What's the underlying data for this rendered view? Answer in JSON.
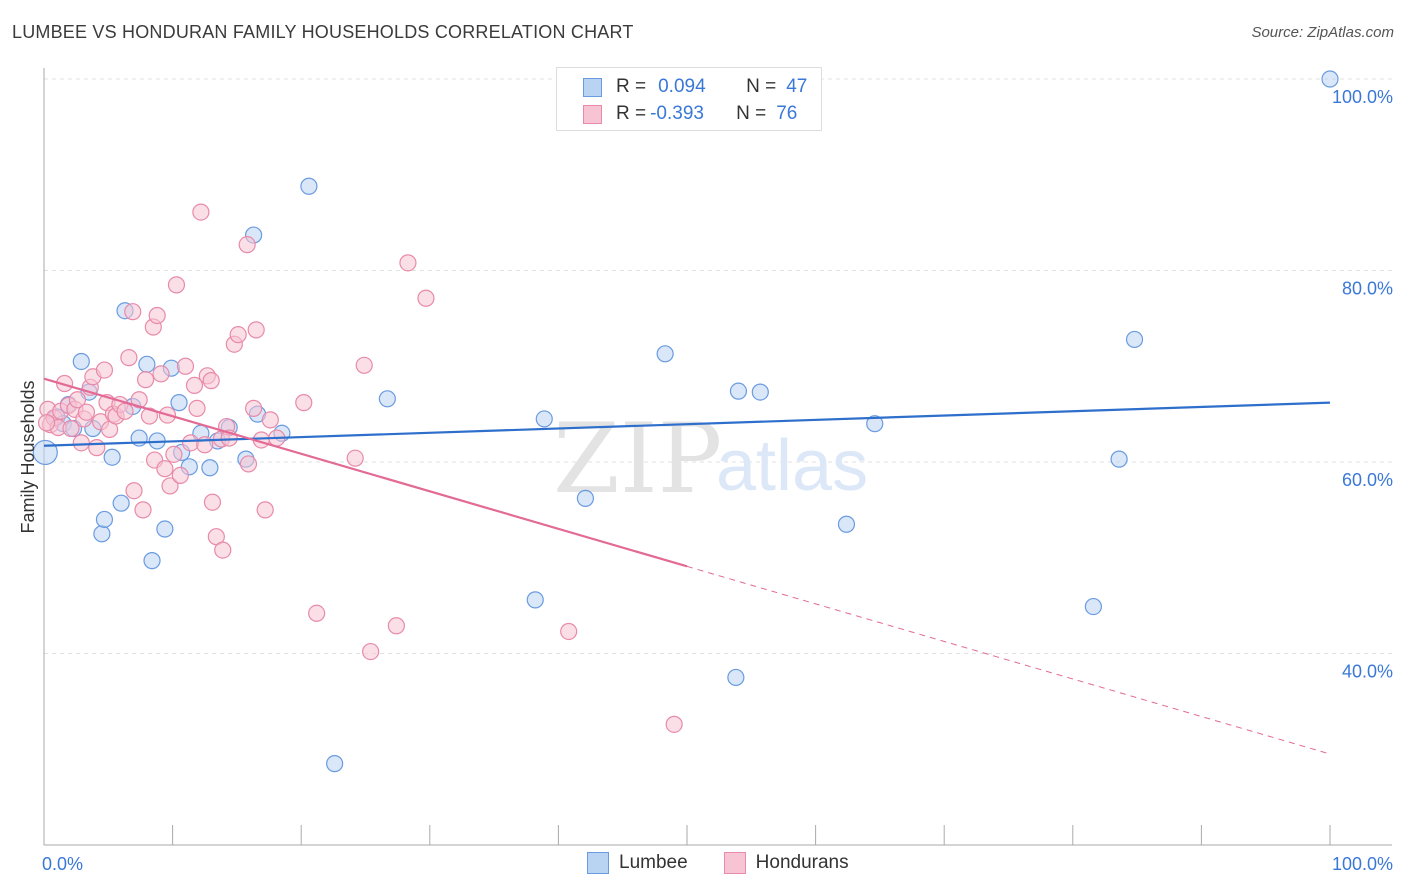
{
  "title": "LUMBEE VS HONDURAN FAMILY HOUSEHOLDS CORRELATION CHART",
  "source": "Source: ZipAtlas.com",
  "watermark": {
    "part1": "ZIP",
    "part2": "atlas"
  },
  "legend": {
    "rows": [
      {
        "r_label": "R =",
        "r_value": "0.094",
        "n_label": "N =",
        "n_value": "47"
      },
      {
        "r_label": "R =",
        "r_value": "-0.393",
        "n_label": "N =",
        "n_value": "76"
      }
    ]
  },
  "colors": {
    "lumbee_fill": "#b9d3f3",
    "lumbee_stroke": "#6a9be0",
    "lumbee_line": "#2e6fcc",
    "honduran_fill": "#f7c4d4",
    "honduran_stroke": "#e88aa9",
    "honduran_line": "#e36a95",
    "grid": "#e2e2e2",
    "tick_text": "#3a78d8"
  },
  "chart_data": {
    "type": "scatter",
    "title": "LUMBEE VS HONDURAN FAMILY HOUSEHOLDS CORRELATION CHART",
    "xlabel": "",
    "ylabel": "Family Households",
    "xlim": [
      0,
      100
    ],
    "ylim": [
      20,
      100
    ],
    "x_tick_labels": [
      {
        "value": 0,
        "label": "0.0%"
      },
      {
        "value": 100,
        "label": "100.0%"
      }
    ],
    "y_tick_labels": [
      {
        "value": 100,
        "label": "100.0%"
      },
      {
        "value": 80,
        "label": "80.0%"
      },
      {
        "value": 60,
        "label": "60.0%"
      },
      {
        "value": 40,
        "label": "40.0%"
      }
    ],
    "series": [
      {
        "name": "Lumbee",
        "trend": {
          "x0": 0,
          "y0": 61.7,
          "x1": 100,
          "y1": 66.2,
          "dashed_from": null
        },
        "points": [
          {
            "x": 0.1,
            "y": 61.0
          },
          {
            "x": 1.0,
            "y": 64.7
          },
          {
            "x": 1.5,
            "y": 64.0
          },
          {
            "x": 1.9,
            "y": 66.0
          },
          {
            "x": 2.3,
            "y": 63.5
          },
          {
            "x": 2.9,
            "y": 70.5
          },
          {
            "x": 3.5,
            "y": 67.3
          },
          {
            "x": 3.8,
            "y": 63.5
          },
          {
            "x": 4.5,
            "y": 52.5
          },
          {
            "x": 4.7,
            "y": 54.0
          },
          {
            "x": 5.3,
            "y": 60.5
          },
          {
            "x": 6.0,
            "y": 55.7
          },
          {
            "x": 6.3,
            "y": 75.8
          },
          {
            "x": 6.9,
            "y": 65.8
          },
          {
            "x": 7.4,
            "y": 62.5
          },
          {
            "x": 8.0,
            "y": 70.2
          },
          {
            "x": 8.4,
            "y": 49.7
          },
          {
            "x": 8.8,
            "y": 62.2
          },
          {
            "x": 9.4,
            "y": 53.0
          },
          {
            "x": 9.9,
            "y": 69.8
          },
          {
            "x": 10.5,
            "y": 66.2
          },
          {
            "x": 10.7,
            "y": 61.0
          },
          {
            "x": 11.3,
            "y": 59.5
          },
          {
            "x": 12.2,
            "y": 63.0
          },
          {
            "x": 12.9,
            "y": 59.4
          },
          {
            "x": 13.5,
            "y": 62.2
          },
          {
            "x": 14.4,
            "y": 63.6
          },
          {
            "x": 15.7,
            "y": 60.3
          },
          {
            "x": 16.3,
            "y": 83.7
          },
          {
            "x": 16.6,
            "y": 65.0
          },
          {
            "x": 18.5,
            "y": 63.0
          },
          {
            "x": 20.6,
            "y": 88.8
          },
          {
            "x": 22.6,
            "y": 28.5
          },
          {
            "x": 26.7,
            "y": 66.6
          },
          {
            "x": 38.2,
            "y": 45.6
          },
          {
            "x": 38.9,
            "y": 64.5
          },
          {
            "x": 42.1,
            "y": 56.2
          },
          {
            "x": 48.3,
            "y": 71.3
          },
          {
            "x": 53.8,
            "y": 37.5
          },
          {
            "x": 54.0,
            "y": 67.4
          },
          {
            "x": 55.7,
            "y": 67.3
          },
          {
            "x": 62.4,
            "y": 53.5
          },
          {
            "x": 64.6,
            "y": 64.0
          },
          {
            "x": 81.6,
            "y": 44.9
          },
          {
            "x": 83.6,
            "y": 60.3
          },
          {
            "x": 84.8,
            "y": 72.8
          },
          {
            "x": 100.0,
            "y": 100.0
          }
        ]
      },
      {
        "name": "Hondurans",
        "trend": {
          "x0": 0,
          "y0": 68.7,
          "x1": 100,
          "y1": 29.5,
          "dashed_from": 50
        },
        "points": [
          {
            "x": 0.3,
            "y": 65.5
          },
          {
            "x": 0.5,
            "y": 63.9
          },
          {
            "x": 0.8,
            "y": 64.6
          },
          {
            "x": 1.1,
            "y": 63.6
          },
          {
            "x": 1.3,
            "y": 65.3
          },
          {
            "x": 1.6,
            "y": 68.2
          },
          {
            "x": 1.9,
            "y": 65.9
          },
          {
            "x": 2.1,
            "y": 63.5
          },
          {
            "x": 2.4,
            "y": 65.5
          },
          {
            "x": 2.6,
            "y": 66.5
          },
          {
            "x": 2.9,
            "y": 62.0
          },
          {
            "x": 3.1,
            "y": 64.5
          },
          {
            "x": 3.3,
            "y": 65.2
          },
          {
            "x": 3.6,
            "y": 67.8
          },
          {
            "x": 3.8,
            "y": 68.9
          },
          {
            "x": 4.1,
            "y": 61.5
          },
          {
            "x": 4.4,
            "y": 64.2
          },
          {
            "x": 4.7,
            "y": 69.6
          },
          {
            "x": 4.9,
            "y": 66.2
          },
          {
            "x": 5.1,
            "y": 63.4
          },
          {
            "x": 5.4,
            "y": 65.0
          },
          {
            "x": 5.6,
            "y": 64.8
          },
          {
            "x": 5.9,
            "y": 66.0
          },
          {
            "x": 6.3,
            "y": 65.3
          },
          {
            "x": 6.6,
            "y": 70.9
          },
          {
            "x": 6.9,
            "y": 75.7
          },
          {
            "x": 7.0,
            "y": 57.0
          },
          {
            "x": 7.4,
            "y": 66.5
          },
          {
            "x": 7.7,
            "y": 55.0
          },
          {
            "x": 7.9,
            "y": 68.6
          },
          {
            "x": 8.2,
            "y": 64.8
          },
          {
            "x": 8.5,
            "y": 74.1
          },
          {
            "x": 8.6,
            "y": 60.2
          },
          {
            "x": 8.8,
            "y": 75.3
          },
          {
            "x": 9.1,
            "y": 69.2
          },
          {
            "x": 9.4,
            "y": 59.3
          },
          {
            "x": 9.6,
            "y": 64.9
          },
          {
            "x": 9.8,
            "y": 57.5
          },
          {
            "x": 10.1,
            "y": 60.8
          },
          {
            "x": 10.3,
            "y": 78.5
          },
          {
            "x": 10.6,
            "y": 58.6
          },
          {
            "x": 11.0,
            "y": 70.0
          },
          {
            "x": 11.4,
            "y": 62.0
          },
          {
            "x": 11.7,
            "y": 68.0
          },
          {
            "x": 11.9,
            "y": 65.6
          },
          {
            "x": 12.2,
            "y": 86.1
          },
          {
            "x": 12.5,
            "y": 61.8
          },
          {
            "x": 12.7,
            "y": 69.0
          },
          {
            "x": 13.0,
            "y": 68.5
          },
          {
            "x": 13.1,
            "y": 55.8
          },
          {
            "x": 13.4,
            "y": 52.2
          },
          {
            "x": 13.8,
            "y": 62.4
          },
          {
            "x": 13.9,
            "y": 50.8
          },
          {
            "x": 14.2,
            "y": 63.7
          },
          {
            "x": 14.4,
            "y": 62.5
          },
          {
            "x": 14.8,
            "y": 72.3
          },
          {
            "x": 15.1,
            "y": 73.3
          },
          {
            "x": 15.8,
            "y": 82.7
          },
          {
            "x": 15.9,
            "y": 59.8
          },
          {
            "x": 16.3,
            "y": 65.6
          },
          {
            "x": 16.5,
            "y": 73.8
          },
          {
            "x": 16.9,
            "y": 62.3
          },
          {
            "x": 17.2,
            "y": 55.0
          },
          {
            "x": 17.6,
            "y": 64.4
          },
          {
            "x": 18.1,
            "y": 62.5
          },
          {
            "x": 20.2,
            "y": 66.2
          },
          {
            "x": 21.2,
            "y": 44.2
          },
          {
            "x": 24.2,
            "y": 60.4
          },
          {
            "x": 24.9,
            "y": 70.1
          },
          {
            "x": 25.4,
            "y": 40.2
          },
          {
            "x": 27.4,
            "y": 42.9
          },
          {
            "x": 28.3,
            "y": 80.8
          },
          {
            "x": 29.7,
            "y": 77.1
          },
          {
            "x": 40.8,
            "y": 42.3
          },
          {
            "x": 49.0,
            "y": 32.6
          },
          {
            "x": 0.2,
            "y": 64.1
          }
        ]
      }
    ]
  }
}
